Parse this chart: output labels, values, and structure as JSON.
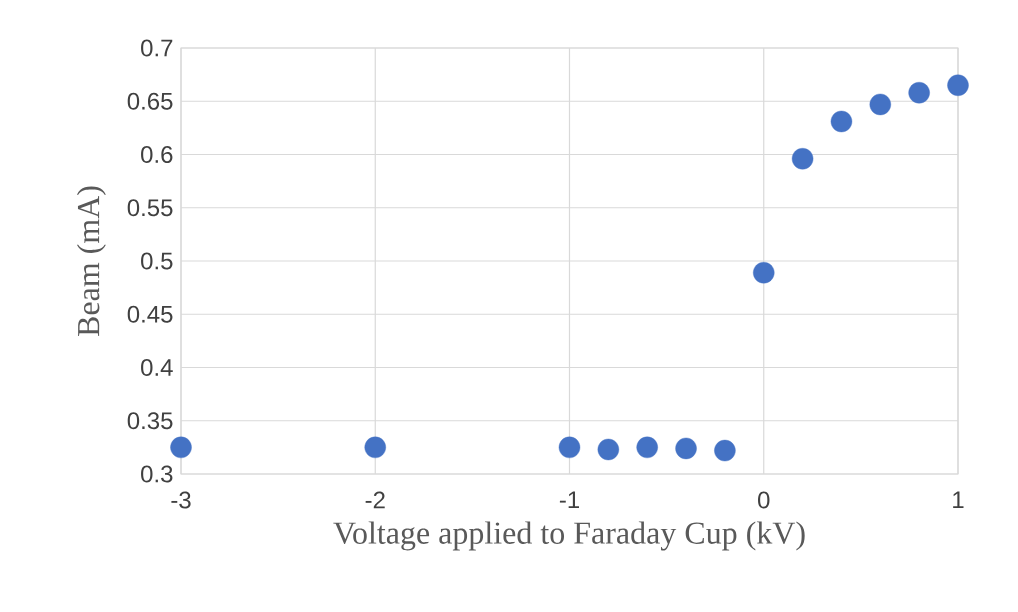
{
  "chart_data": {
    "type": "scatter",
    "xlabel": "Voltage applied to Faraday Cup (kV)",
    "ylabel": "Beam (mA)",
    "x": [
      -3,
      -2,
      -1,
      -0.8,
      -0.6,
      -0.4,
      -0.2,
      0,
      0.2,
      0.4,
      0.6,
      0.8,
      1
    ],
    "series": [
      {
        "color": "#4472c4",
        "values": [
          0.325,
          0.325,
          0.325,
          0.323,
          0.325,
          0.324,
          0.322,
          0.489,
          0.596,
          0.631,
          0.647,
          0.658,
          0.665
        ]
      }
    ],
    "xlim": [
      -3,
      1
    ],
    "ylim": [
      0.3,
      0.7
    ],
    "xticks": [
      -3,
      -2,
      -1,
      0,
      1
    ],
    "yticks": [
      0.3,
      0.35,
      0.4,
      0.45,
      0.5,
      0.55,
      0.6,
      0.65,
      0.7
    ],
    "grid": true,
    "marker": "circle"
  }
}
